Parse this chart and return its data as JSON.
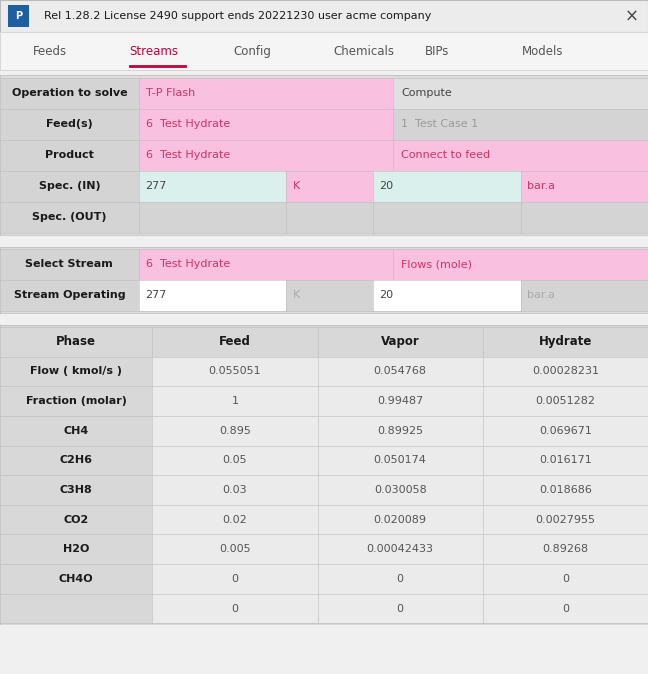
{
  "title_bar": "Rel 1.28.2 License 2490 support ends 20221230 user acme company",
  "tabs": [
    "Feeds",
    "Streams",
    "Config",
    "Chemicals",
    "BIPs",
    "Models"
  ],
  "active_tab": "Streams",
  "bg_color": "#f0f0f0",
  "title_bg": "#e8e8e8",
  "tab_bg": "#f5f5f5",
  "section_bg": "#dcdcdc",
  "label_bg": "#d4d4d4",
  "pink": "#f9c0e0",
  "mint": "#daf0ec",
  "gray_cell": "#d4d4d4",
  "data_cell_bg": "#ebebeb",
  "white_cell": "#ffffff",
  "pink_text": "#cc3366",
  "gray_text": "#999999",
  "dark_text": "#222222",
  "bold_text": "#1a1a1a",
  "tab_active_color": "#c0003a",
  "tab_inactive_color": "#555555",
  "section1_rows": [
    {
      "label": "Operation to solve",
      "type": "two_col",
      "cols": [
        {
          "text": "T-P Flash",
          "bg": "#f9c0e0",
          "text_color": "#cc3366"
        },
        {
          "text": "Compute",
          "bg": "#e0e0e0",
          "text_color": "#444444"
        }
      ]
    },
    {
      "label": "Feed(s)",
      "type": "two_col",
      "cols": [
        {
          "text": "6  Test Hydrate",
          "bg": "#f9c0e0",
          "text_color": "#cc3366"
        },
        {
          "text": "1  Test Case 1",
          "bg": "#d4d4d4",
          "text_color": "#999999"
        }
      ]
    },
    {
      "label": "Product",
      "type": "two_col",
      "cols": [
        {
          "text": "6  Test Hydrate",
          "bg": "#f9c0e0",
          "text_color": "#cc3366"
        },
        {
          "text": "Connect to feed",
          "bg": "#f9c0e0",
          "text_color": "#cc3366"
        }
      ]
    },
    {
      "label": "Spec. (IN)",
      "type": "four_col",
      "cols": [
        {
          "text": "277",
          "bg": "#daf0ec",
          "text_color": "#444444"
        },
        {
          "text": "K",
          "bg": "#f9c0e0",
          "text_color": "#cc3366"
        },
        {
          "text": "20",
          "bg": "#daf0ec",
          "text_color": "#444444"
        },
        {
          "text": "bar.a",
          "bg": "#f9c0e0",
          "text_color": "#cc3366"
        }
      ]
    },
    {
      "label": "Spec. (OUT)",
      "type": "four_col",
      "cols": [
        {
          "text": "",
          "bg": "#d4d4d4",
          "text_color": "#444444"
        },
        {
          "text": "",
          "bg": "#d4d4d4",
          "text_color": "#444444"
        },
        {
          "text": "",
          "bg": "#d4d4d4",
          "text_color": "#444444"
        },
        {
          "text": "",
          "bg": "#d4d4d4",
          "text_color": "#444444"
        }
      ]
    }
  ],
  "section2_rows": [
    {
      "label": "Select Stream",
      "type": "two_col",
      "cols": [
        {
          "text": "6  Test Hydrate",
          "bg": "#f9c0e0",
          "text_color": "#cc3366"
        },
        {
          "text": "Flows (mole)",
          "bg": "#f9c0e0",
          "text_color": "#cc3366"
        }
      ]
    },
    {
      "label": "Stream Operating",
      "type": "four_col",
      "cols": [
        {
          "text": "277",
          "bg": "#ffffff",
          "text_color": "#444444"
        },
        {
          "text": "K",
          "bg": "#d4d4d4",
          "text_color": "#aaaaaa"
        },
        {
          "text": "20",
          "bg": "#ffffff",
          "text_color": "#444444"
        },
        {
          "text": "bar.a",
          "bg": "#d4d4d4",
          "text_color": "#aaaaaa"
        }
      ]
    }
  ],
  "table_headers": [
    "Phase",
    "Feed",
    "Vapor",
    "Hydrate"
  ],
  "table_rows": [
    [
      "Flow ( kmol/s )",
      "0.055051",
      "0.054768",
      "0.00028231"
    ],
    [
      "Fraction (molar)",
      "1",
      "0.99487",
      "0.0051282"
    ],
    [
      "CH4",
      "0.895",
      "0.89925",
      "0.069671"
    ],
    [
      "C2H6",
      "0.05",
      "0.050174",
      "0.016171"
    ],
    [
      "C3H8",
      "0.03",
      "0.030058",
      "0.018686"
    ],
    [
      "CO2",
      "0.02",
      "0.020089",
      "0.0027955"
    ],
    [
      "H2O",
      "0.005",
      "0.00042433",
      "0.89268"
    ],
    [
      "CH4O",
      "0",
      "0",
      "0"
    ],
    [
      "",
      "0",
      "0",
      "0"
    ]
  ]
}
